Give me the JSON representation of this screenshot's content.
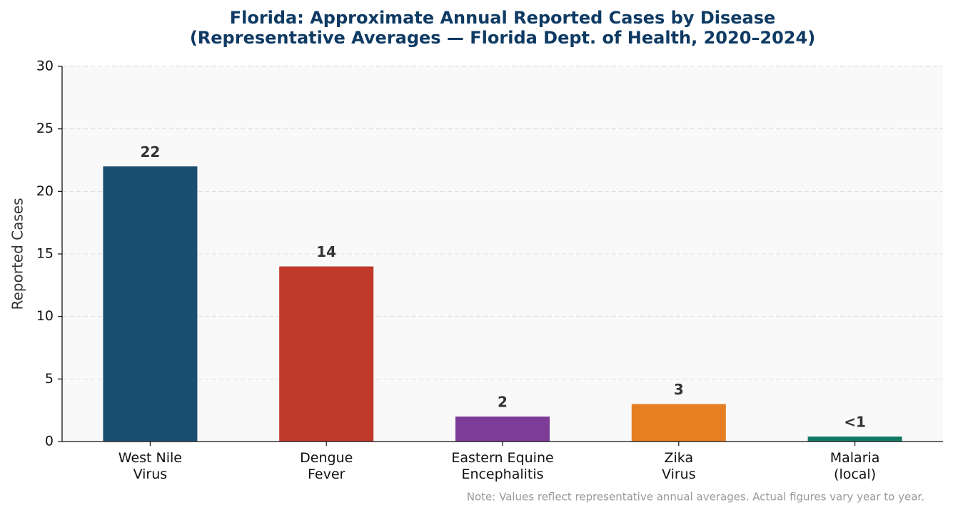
{
  "chart_data": {
    "type": "bar",
    "title": "Florida: Approximate Annual Reported Cases by Disease",
    "subtitle": "(Representative Averages — Florida Dept. of Health, 2020–2024)",
    "ylabel": "Reported Cases",
    "note": "Note: Values reflect representative annual averages. Actual figures vary year to year.",
    "categories": [
      "West Nile\nVirus",
      "Dengue\nFever",
      "Eastern Equine\nEncephalitis",
      "Zika\nVirus",
      "Malaria\n(local)"
    ],
    "values": [
      22,
      14,
      2,
      3,
      0.4
    ],
    "value_labels": [
      "22",
      "14",
      "2",
      "3",
      "<1"
    ],
    "colors": [
      "#1b4f72",
      "#c0392b",
      "#7d3c98",
      "#e67e22",
      "#117a65"
    ],
    "ylim": [
      0,
      30
    ],
    "yticks": [
      0,
      5,
      10,
      15,
      20,
      25,
      30
    ],
    "grid": true
  }
}
